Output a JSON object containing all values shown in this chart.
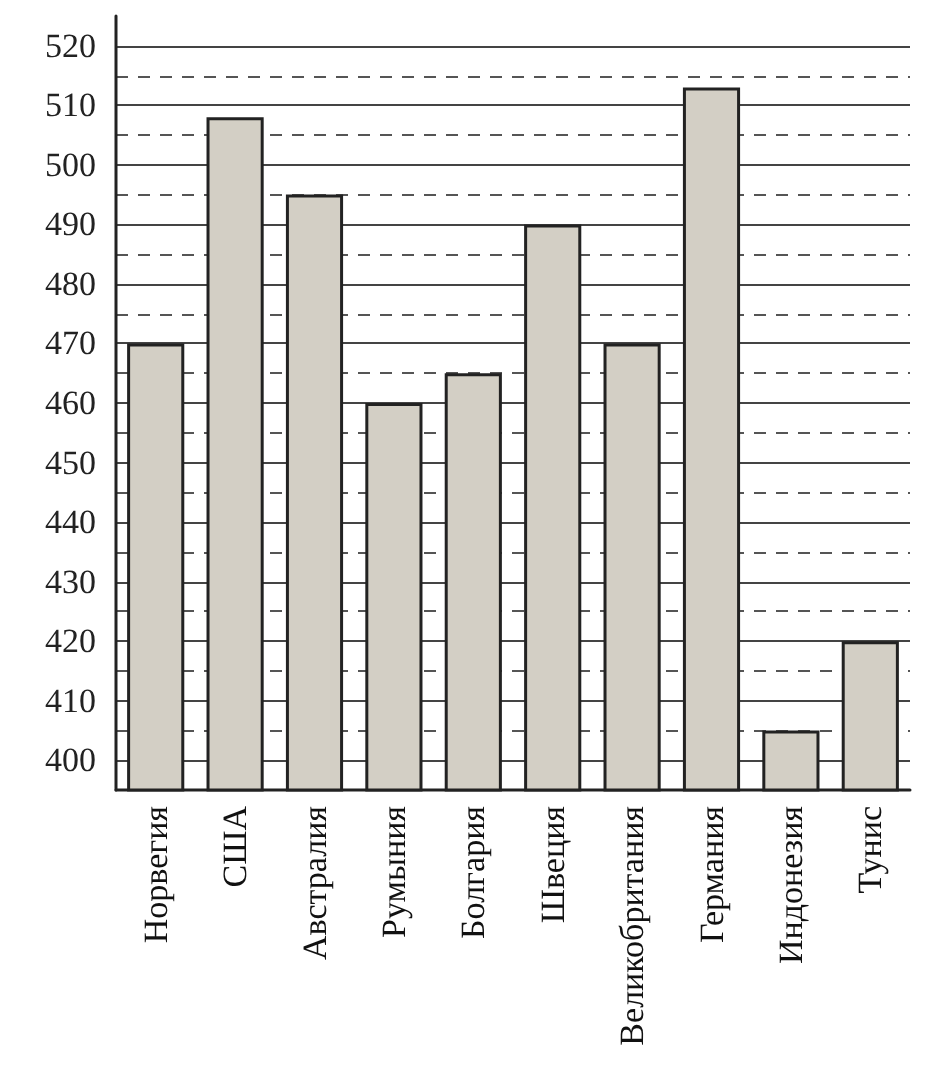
{
  "chart_data": {
    "type": "bar",
    "categories": [
      "Норвегия",
      "США",
      "Австралия",
      "Румыния",
      "Болгария",
      "Швеция",
      "Великобритания",
      "Германия",
      "Индонезия",
      "Тунис"
    ],
    "values": [
      470,
      508,
      495,
      460,
      465,
      490,
      470,
      513,
      405,
      420
    ],
    "color": "#d3cfc5",
    "ylim": [
      395,
      525
    ],
    "yticks": [
      400,
      {
        "value": 405,
        "label": null
      },
      410,
      {
        "value": 415,
        "label": null
      },
      420,
      {
        "value": 425,
        "label": null
      },
      430,
      {
        "value": 435,
        "label": null
      },
      440,
      {
        "value": 445,
        "label": null
      },
      450,
      {
        "value": 455,
        "label": null
      },
      460,
      {
        "value": 465,
        "label": null
      },
      470,
      {
        "value": 475,
        "label": null
      },
      480,
      {
        "value": 485,
        "label": null
      },
      490,
      {
        "value": 495,
        "label": null
      },
      500,
      {
        "value": 505,
        "label": null
      },
      510,
      {
        "value": 515,
        "label": null
      },
      520
    ],
    "grid": "y"
  }
}
